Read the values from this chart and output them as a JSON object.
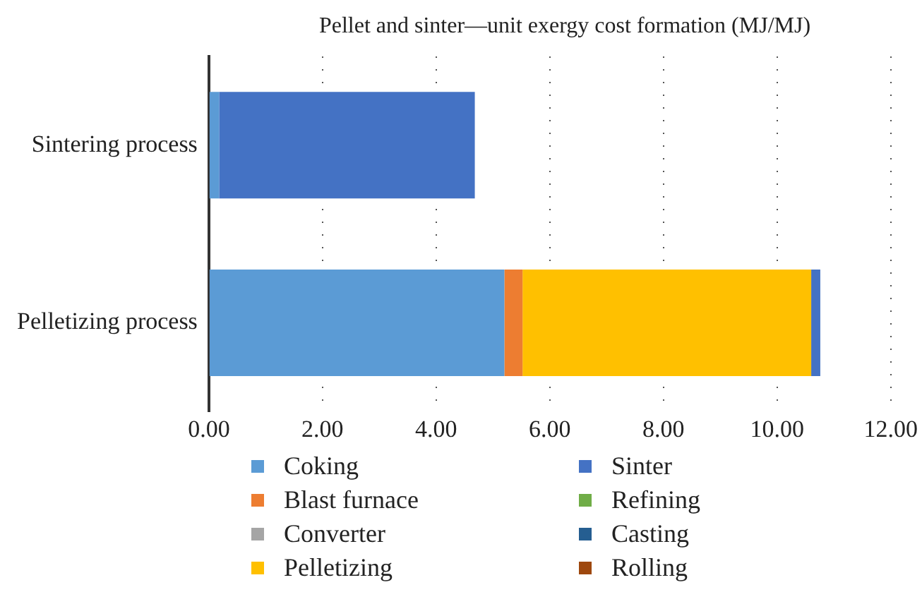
{
  "chart_data": {
    "type": "bar",
    "orientation": "horizontal",
    "stacked": true,
    "title": "Pellet and sinter—unit exergy cost formation (MJ/MJ)",
    "categories": [
      "Sintering process",
      "Pelletizing process"
    ],
    "series": [
      {
        "name": "Coking",
        "color": "#5b9bd5",
        "values": [
          0.18,
          5.2
        ]
      },
      {
        "name": "Blast furnace",
        "color": "#ed7d31",
        "values": [
          0,
          0.32
        ]
      },
      {
        "name": "Converter",
        "color": "#a5a5a5",
        "values": [
          0,
          0
        ]
      },
      {
        "name": "Pelletizing",
        "color": "#ffc000",
        "values": [
          0,
          5.08
        ]
      },
      {
        "name": "Sinter",
        "color": "#4472c4",
        "values": [
          4.5,
          0.16
        ]
      },
      {
        "name": "Refining",
        "color": "#70ad47",
        "values": [
          0,
          0
        ]
      },
      {
        "name": "Casting",
        "color": "#255e91",
        "values": [
          0,
          0
        ]
      },
      {
        "name": "Rolling",
        "color": "#9e480e",
        "values": [
          0,
          0
        ]
      }
    ],
    "xlim": [
      0,
      12
    ],
    "xticks": [
      {
        "value": 0,
        "label": "0.00"
      },
      {
        "value": 2,
        "label": "2.00"
      },
      {
        "value": 4,
        "label": "4.00"
      },
      {
        "value": 6,
        "label": "6.00"
      },
      {
        "value": 8,
        "label": "8.00"
      },
      {
        "value": 10,
        "label": "10.00"
      },
      {
        "value": 12,
        "label": "12.00"
      }
    ],
    "grid": "x",
    "legend": "bottom"
  }
}
